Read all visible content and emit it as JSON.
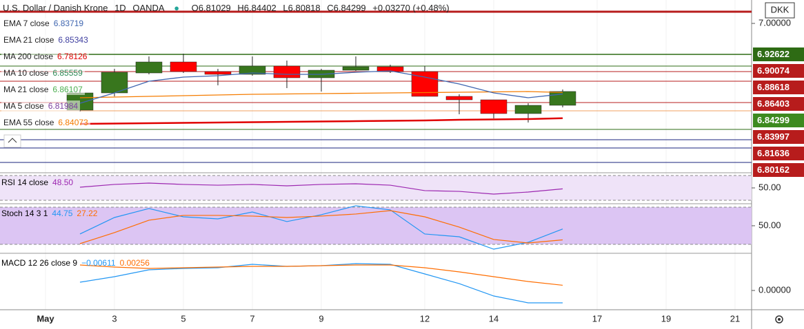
{
  "header": {
    "symbol": "U.S. Dollar / Danish Krone",
    "interval": "1D",
    "source": "OANDA",
    "open": "O6.81029",
    "high": "H6.84402",
    "low": "L6.80818",
    "close": "C6.84299",
    "change": "+0.03270 (+0.48%)"
  },
  "currency": "DKK",
  "legend": [
    {
      "name": "EMA 7 close",
      "value": "6.83719",
      "color": "#3f66b0"
    },
    {
      "name": "EMA 21 close",
      "value": "6.85343",
      "color": "#3f3fa0"
    },
    {
      "name": "MA 200 close",
      "value": "6.78126",
      "color": "#e00000"
    },
    {
      "name": "MA 10 close",
      "value": "6.85559",
      "color": "#2e8b57"
    },
    {
      "name": "MA 21 close",
      "value": "6.86107",
      "color": "#4caf50"
    },
    {
      "name": "MA 5 close",
      "value": "6.81984",
      "color": "#7b3fa0"
    },
    {
      "name": "EMA 55 close",
      "value": "6.84073",
      "color": "#f57c00"
    }
  ],
  "price_tags": [
    {
      "label": "6.92622",
      "color": "#2e6b14"
    },
    {
      "label": "6.90074",
      "color": "#b71c1c"
    },
    {
      "label": "6.88618",
      "color": "#b71c1c"
    },
    {
      "label": "6.86403",
      "color": "#b71c1c"
    },
    {
      "label": "6.84299",
      "color": "#3d8a1f"
    },
    {
      "label": "6.83997",
      "color": "#b71c1c"
    },
    {
      "label": "6.81636",
      "color": "#b71c1c"
    },
    {
      "label": "6.80162",
      "color": "#b71c1c"
    }
  ],
  "chart_data": [
    {
      "type": "candlestick",
      "x": [
        2,
        3,
        4,
        5,
        6,
        7,
        8,
        9,
        10,
        11,
        12,
        13,
        14,
        15,
        16
      ],
      "open": [
        6.8,
        6.83968,
        6.88571,
        6.91111,
        6.88889,
        6.88254,
        6.90159,
        6.8746,
        6.89206,
        6.9,
        6.88889,
        6.83175,
        6.82381,
        6.79206,
        6.81111
      ],
      "high": [
        6.84762,
        6.89524,
        6.92381,
        6.93016,
        6.89524,
        6.92381,
        6.91429,
        6.89524,
        6.92381,
        6.90476,
        6.90159,
        6.83651,
        6.82381,
        6.81587,
        6.84762
      ],
      "low": [
        6.79683,
        6.83175,
        6.88254,
        6.88571,
        6.85714,
        6.87937,
        6.85079,
        6.84286,
        6.89048,
        6.88571,
        6.83175,
        6.79048,
        6.78095,
        6.77143,
        6.80635
      ],
      "close": [
        6.83968,
        6.8873,
        6.91111,
        6.88889,
        6.88254,
        6.90159,
        6.8746,
        6.89206,
        6.9,
        6.88889,
        6.83175,
        6.82381,
        6.79206,
        6.81111,
        6.84299
      ],
      "up_color": "#38761d",
      "down_color": "#ff0000",
      "overlays": [
        {
          "color": "#f57c00",
          "values": [
            6.82857,
            6.83016,
            6.83175,
            6.83333,
            6.83492,
            6.83651,
            6.8373,
            6.8381,
            6.83889,
            6.83968,
            6.84048,
            6.84127,
            6.84206,
            6.84286,
            6.84073
          ]
        },
        {
          "color": "#e00000",
          "values": [
            6.76825,
            6.76905,
            6.76984,
            6.77063,
            6.77143,
            6.77222,
            6.77302,
            6.77381,
            6.7746,
            6.7754,
            6.77619,
            6.77778,
            6.77857,
            6.77937,
            6.78126
          ]
        },
        {
          "color": "#3f66b0",
          "values": [
            6.81587,
            6.83968,
            6.86667,
            6.87619,
            6.87937,
            6.88571,
            6.88254,
            6.88254,
            6.8873,
            6.89048,
            6.87619,
            6.86032,
            6.83968,
            6.82857,
            6.83719
          ]
        }
      ],
      "xlim": [
        -0.32,
        21.48
      ],
      "xticks": [
        {
          "value": 1,
          "label": "May"
        },
        3,
        5,
        7,
        9,
        12,
        14,
        17,
        19,
        21
      ],
      "xtick_labels_override": null,
      "ylim": [
        6.65714,
        7.05397
      ],
      "yticks": [
        {
          "value": 7,
          "label": "7.00000"
        }
      ]
    },
    {
      "type": "line",
      "label": "RSI 14 close",
      "readout": [
        "48.50"
      ],
      "x": [
        2,
        3,
        4,
        5,
        6,
        7,
        8,
        9,
        10,
        11,
        12,
        13,
        14,
        15,
        16
      ],
      "series": [
        {
          "color": "#9c27b0",
          "values": [
            51.1,
            55.6,
            57.8,
            55.6,
            54.4,
            55.6,
            53.3,
            55.6,
            56.7,
            54.4,
            45.6,
            44.4,
            40,
            43.3,
            48.5
          ]
        }
      ],
      "band": [
        30,
        70
      ],
      "band_color": "#efe3f8",
      "ylim": [
        25.56,
        73.33
      ],
      "yticks": [
        {
          "value": 50,
          "label": "50.00"
        }
      ]
    },
    {
      "type": "line",
      "label": "Stoch 14 3 1",
      "readout": [
        "44.75",
        "27.22"
      ],
      "x": [
        2,
        3,
        4,
        5,
        6,
        7,
        8,
        9,
        10,
        11,
        12,
        13,
        14,
        15,
        16
      ],
      "series": [
        {
          "color": "#2196f3",
          "values": [
            36.7,
            63.3,
            77.8,
            64.4,
            61.1,
            72.2,
            56.7,
            67.8,
            82.2,
            75.6,
            36.7,
            32.2,
            12.2,
            23.3,
            44.75
          ]
        },
        {
          "color": "#ff6d00",
          "values": [
            21.1,
            38.9,
            58.9,
            66.7,
            66.7,
            65.6,
            63.3,
            65.6,
            68.9,
            74.4,
            64.4,
            47.8,
            27.8,
            22.2,
            27.22
          ]
        }
      ],
      "band": [
        20,
        80
      ],
      "band_color": "#dcc5f3",
      "ylim": [
        6.67,
        84.4
      ],
      "yticks": [
        {
          "value": 50,
          "label": "50.00"
        }
      ]
    },
    {
      "type": "line",
      "label": "MACD 12 26 close 9",
      "readout": [
        "−0.00611",
        "0.00256"
      ],
      "x": [
        2,
        3,
        4,
        5,
        6,
        7,
        8,
        9,
        10,
        11,
        12,
        13,
        14,
        15,
        16
      ],
      "series": [
        {
          "color": "#2196f3",
          "values": [
            0.00407,
            0.00679,
            0.01018,
            0.01086,
            0.0112,
            0.0129,
            0.01188,
            0.01222,
            0.01324,
            0.0129,
            0.00815,
            0.00339,
            -0.00272,
            -0.00611,
            -0.00611
          ]
        },
        {
          "color": "#ff6d00",
          "values": [
            0.01256,
            0.01154,
            0.01086,
            0.0112,
            0.01154,
            0.01188,
            0.01188,
            0.01222,
            0.01256,
            0.01256,
            0.0112,
            0.00917,
            0.00679,
            0.00441,
            0.00256
          ]
        }
      ],
      "ylim": [
        -0.0095,
        0.01799
      ],
      "yticks": [
        {
          "value": 0,
          "label": "0.00000"
        }
      ]
    }
  ]
}
